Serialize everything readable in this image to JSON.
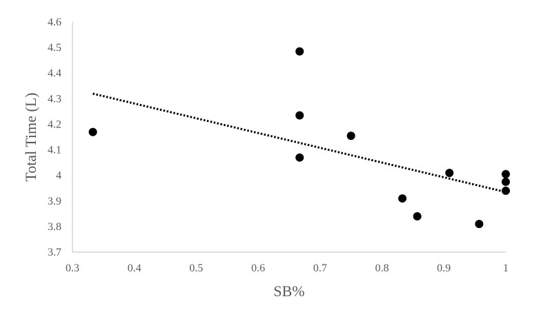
{
  "chart_data": {
    "type": "scatter",
    "title": "",
    "xlabel": "SB%",
    "ylabel": "Total Time (L)",
    "xlim": [
      0.3,
      1
    ],
    "ylim": [
      3.7,
      4.6
    ],
    "x_ticks": [
      "0.3",
      "0.4",
      "0.5",
      "0.6",
      "0.7",
      "0.8",
      "0.9",
      "1"
    ],
    "y_ticks": [
      "3.7",
      "3.8",
      "3.9",
      "4",
      "4.1",
      "4.2",
      "4.3",
      "4.4",
      "4.5",
      "4.6"
    ],
    "grid": false,
    "legend": "none",
    "series": [
      {
        "x": [
          0.333,
          0.667,
          0.667,
          0.667,
          0.75,
          0.833,
          0.857,
          0.909,
          0.957,
          1.0,
          1.0,
          1.0
        ],
        "y": [
          4.17,
          4.485,
          4.235,
          4.07,
          4.155,
          3.91,
          3.84,
          4.01,
          3.81,
          4.005,
          3.975,
          3.94
        ]
      }
    ],
    "trendline": {
      "type": "linear",
      "style": "dotted",
      "x": [
        0.333,
        1.0
      ],
      "y": [
        4.32,
        3.935
      ]
    },
    "colors": {
      "marker": "#000000",
      "trendline": "#000000",
      "axis": "#bfbfbf",
      "text": "#595959"
    }
  }
}
